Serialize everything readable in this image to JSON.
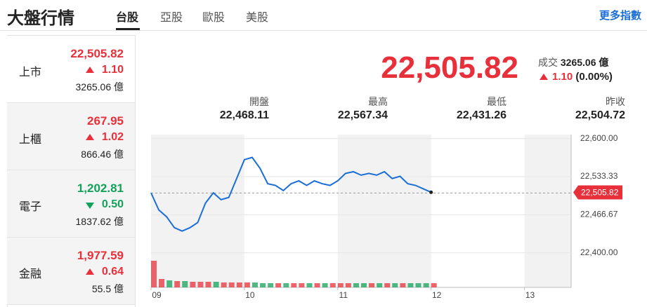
{
  "header": {
    "title": "大盤行情",
    "tabs": [
      "台股",
      "亞股",
      "歐股",
      "美股"
    ],
    "active_tab": 0,
    "more": "更多指數"
  },
  "indices": [
    {
      "name": "上市",
      "price": "22,505.82",
      "change": "1.10",
      "direction": "up",
      "volume": "3265.06 億"
    },
    {
      "name": "上櫃",
      "price": "267.95",
      "change": "1.02",
      "direction": "up",
      "volume": "866.46 億"
    },
    {
      "name": "電子",
      "price": "1,202.81",
      "change": "0.50",
      "direction": "down",
      "volume": "1837.62 億"
    },
    {
      "name": "金融",
      "price": "1,977.59",
      "change": "0.64",
      "direction": "up",
      "volume": "55.5 億"
    }
  ],
  "quote": {
    "price": "22,505.82",
    "volume_label": "成交",
    "volume": "3265.06 億",
    "change": "1.10",
    "change_pct": "(0.00%)",
    "direction": "up",
    "stats": [
      {
        "label": "開盤",
        "value": "22,468.11"
      },
      {
        "label": "最高",
        "value": "22,567.34"
      },
      {
        "label": "最低",
        "value": "22,431.26"
      },
      {
        "label": "昨收",
        "value": "22,504.72"
      }
    ]
  },
  "chart_data": {
    "type": "line",
    "color": "#1a6ed8",
    "x": [
      9,
      9.083,
      9.167,
      9.25,
      9.333,
      9.417,
      9.5,
      9.583,
      9.667,
      9.75,
      9.833,
      9.917,
      10,
      10.083,
      10.167,
      10.25,
      10.333,
      10.417,
      10.5,
      10.583,
      10.667,
      10.75,
      10.833,
      10.917,
      11,
      11.083,
      11.167,
      11.25,
      11.333,
      11.417,
      11.5,
      11.583,
      11.667,
      11.75,
      11.833,
      11.917,
      12
    ],
    "values": [
      22505,
      22475,
      22463,
      22444,
      22438,
      22444,
      22453,
      22487,
      22505,
      22493,
      22497,
      22530,
      22563,
      22567,
      22548,
      22521,
      22518,
      22509,
      22521,
      22526,
      22518,
      22526,
      22521,
      22518,
      22526,
      22539,
      22542,
      22536,
      22539,
      22536,
      22542,
      22530,
      22534,
      22521,
      22518,
      22512,
      22506
    ],
    "volume": [
      38,
      12,
      10,
      9,
      9,
      8,
      8,
      8,
      8,
      7,
      7,
      7,
      7,
      7,
      6,
      6,
      6,
      6,
      6,
      6,
      6,
      6,
      6,
      6,
      6,
      6,
      6,
      6,
      6,
      6,
      6,
      6,
      6,
      6,
      6,
      6,
      6
    ],
    "volume_colors": [
      "#e8303a",
      "#e8303a",
      "#13a15a",
      "#e8303a",
      "#13a15a",
      "#e8303a",
      "#e8303a",
      "#e8303a",
      "#13a15a",
      "#e8303a",
      "#e8303a",
      "#e8303a",
      "#e8303a",
      "#13a15a",
      "#13a15a",
      "#13a15a",
      "#e8303a",
      "#13a15a",
      "#e8303a",
      "#e8303a",
      "#13a15a",
      "#e8303a",
      "#13a15a",
      "#e8303a",
      "#e8303a",
      "#e8303a",
      "#13a15a",
      "#13a15a",
      "#e8303a",
      "#13a15a",
      "#e8303a",
      "#13a15a",
      "#e8303a",
      "#13a15a",
      "#13a15a",
      "#13a15a",
      "#e8303a"
    ],
    "volume_ylim": [
      0,
      40
    ],
    "xlim": [
      9,
      13.5
    ],
    "xticks": [
      {
        "value": 9,
        "label": "09"
      },
      {
        "value": 10,
        "label": "10"
      },
      {
        "value": 11,
        "label": "11"
      },
      {
        "value": 12,
        "label": "12"
      },
      {
        "value": 13,
        "label": "13"
      }
    ],
    "ylim": [
      22391,
      22607
    ],
    "yticks": [
      {
        "value": 22400,
        "label": "22,400.00"
      },
      {
        "value": 22466.67,
        "label": "22,466.67"
      },
      {
        "value": 22533.33,
        "label": "22,533.33"
      },
      {
        "value": 22600,
        "label": "22,600.00"
      }
    ],
    "reference": 22504.72,
    "current": {
      "value": 22505.82,
      "label": "22,505.82"
    },
    "grid": true
  }
}
